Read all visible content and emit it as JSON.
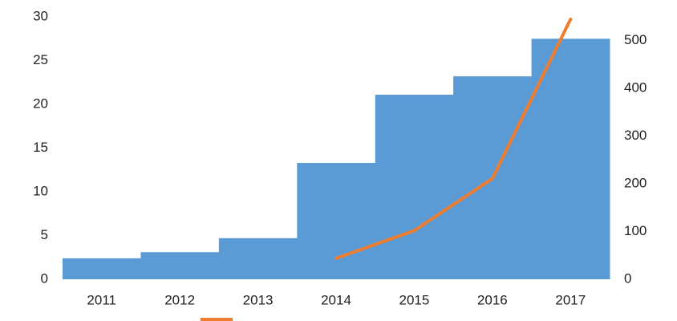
{
  "chart_data": {
    "type": "bar-line",
    "categories": [
      "2011",
      "2012",
      "2013",
      "2014",
      "2015",
      "2016",
      "2017"
    ],
    "series": [
      {
        "type": "bar",
        "color": "#5b9bd5",
        "values": [
          2.4,
          3.1,
          4.7,
          13.3,
          21.1,
          23.2,
          27.5
        ]
      },
      {
        "type": "line",
        "axis": "y2",
        "color": "#ed7d31",
        "values": [
          null,
          null,
          null,
          44,
          102,
          211,
          545
        ]
      }
    ],
    "ylim": [
      0,
      30
    ],
    "yticks": [
      0,
      5,
      10,
      15,
      20,
      25,
      30
    ],
    "y2lim": [
      0,
      550
    ],
    "y2ticks": [
      0,
      100,
      200,
      300,
      400,
      500
    ],
    "grid": false
  }
}
